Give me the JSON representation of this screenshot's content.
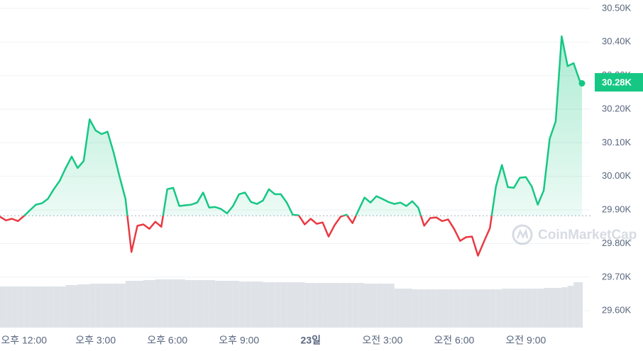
{
  "chart_data": {
    "type": "line",
    "x": [
      11,
      11.25,
      11.5,
      11.75,
      12,
      12.25,
      12.5,
      12.75,
      13,
      13.25,
      13.5,
      13.75,
      14,
      14.25,
      14.5,
      14.75,
      15,
      15.25,
      15.5,
      15.75,
      16,
      16.25,
      16.5,
      16.75,
      17,
      17.25,
      17.5,
      17.75,
      18,
      18.25,
      18.5,
      18.75,
      19,
      19.25,
      19.5,
      19.75,
      20,
      20.25,
      20.5,
      20.75,
      21,
      21.25,
      21.5,
      21.75,
      22,
      22.25,
      22.5,
      22.75,
      23,
      23.25,
      23.5,
      23.75,
      24,
      24.25,
      24.5,
      24.75,
      25,
      25.25,
      25.5,
      25.75,
      26,
      26.25,
      26.5,
      26.75,
      27,
      27.25,
      27.5,
      27.75,
      28,
      28.25,
      28.5,
      28.75,
      29,
      29.25,
      29.5,
      29.75,
      30,
      30.25,
      30.5,
      30.75,
      31,
      31.25,
      31.5,
      31.75,
      32,
      32.25,
      32.5,
      32.75,
      33,
      33.25,
      33.5,
      33.75,
      34,
      34.25,
      34.5,
      34.75,
      35,
      35.25,
      35.35
    ],
    "values": [
      29880,
      29869,
      29874,
      29867,
      29882,
      29899,
      29916,
      29920,
      29933,
      29962,
      29987,
      30025,
      30059,
      30025,
      30046,
      30170,
      30137,
      30126,
      30133,
      30072,
      30000,
      29933,
      29775,
      29853,
      29857,
      29844,
      29865,
      29850,
      29962,
      29966,
      29912,
      29914,
      29916,
      29922,
      29952,
      29907,
      29909,
      29903,
      29890,
      29912,
      29947,
      29952,
      29924,
      29918,
      29928,
      29962,
      29947,
      29947,
      29922,
      29886,
      29884,
      29857,
      29874,
      29859,
      29863,
      29821,
      29855,
      29880,
      29886,
      29861,
      29899,
      29937,
      29922,
      29941,
      29933,
      29924,
      29918,
      29922,
      29912,
      29926,
      29907,
      29853,
      29876,
      29878,
      29867,
      29872,
      29844,
      29808,
      29819,
      29821,
      29764,
      29806,
      29846,
      29970,
      30034,
      29968,
      29966,
      29996,
      29998,
      29970,
      29916,
      29958,
      30112,
      30164,
      30417,
      30328,
      30337,
      30286,
      30277
    ],
    "volume": [
      58,
      58,
      58,
      58,
      58,
      58,
      58,
      58,
      58,
      58,
      58,
      60,
      60,
      61,
      61,
      62,
      62,
      62,
      62,
      62,
      62,
      66,
      66,
      66,
      67,
      67,
      68,
      68,
      68,
      68,
      68,
      67,
      67,
      67,
      67,
      67,
      66,
      66,
      66,
      66,
      65,
      65,
      65,
      65,
      64,
      64,
      64,
      64,
      64,
      64,
      64,
      63,
      63,
      63,
      63,
      63,
      63,
      63,
      63,
      63,
      63,
      62,
      62,
      62,
      62,
      62,
      55,
      55,
      55,
      54,
      54,
      54,
      54,
      54,
      54,
      54,
      54,
      54,
      54,
      54,
      54,
      54,
      54,
      54,
      55,
      55,
      55,
      55,
      55,
      55,
      55,
      56,
      56,
      56,
      57,
      59,
      64,
      64,
      64
    ],
    "volume_lim": [
      0,
      100
    ],
    "baseline": 29883,
    "up_color": "#16c784",
    "down_color": "#ea3943",
    "volume_color": "#dfe3e8",
    "xlim": [
      11,
      35.35
    ],
    "ylim": [
      29550,
      30525
    ],
    "xticks": [
      {
        "value": 12,
        "label": "오후 12:00"
      },
      {
        "value": 15,
        "label": "오후 3:00"
      },
      {
        "value": 18,
        "label": "오후 6:00"
      },
      {
        "value": 21,
        "label": "오후 9:00"
      },
      {
        "value": 24,
        "label": "23일",
        "bold": true
      },
      {
        "value": 27,
        "label": "오전 3:00"
      },
      {
        "value": 30,
        "label": "오전 6:00"
      },
      {
        "value": 33,
        "label": "오전 9:00"
      }
    ],
    "yticks": [
      {
        "value": 29600,
        "label": "29.60K"
      },
      {
        "value": 29700,
        "label": "29.70K"
      },
      {
        "value": 29800,
        "label": "29.80K"
      },
      {
        "value": 29900,
        "label": "29.90K"
      },
      {
        "value": 30000,
        "label": "30.00K"
      },
      {
        "value": 30100,
        "label": "30.10K"
      },
      {
        "value": 30200,
        "label": "30.20K"
      },
      {
        "value": 30300,
        "label": "30.30K"
      },
      {
        "value": 30400,
        "label": "30.40K"
      },
      {
        "value": 30500,
        "label": "30.50K"
      }
    ],
    "grid": true,
    "current_price": {
      "value": 30280,
      "label": "30.28K"
    },
    "watermark": "CoinMarketCap"
  }
}
